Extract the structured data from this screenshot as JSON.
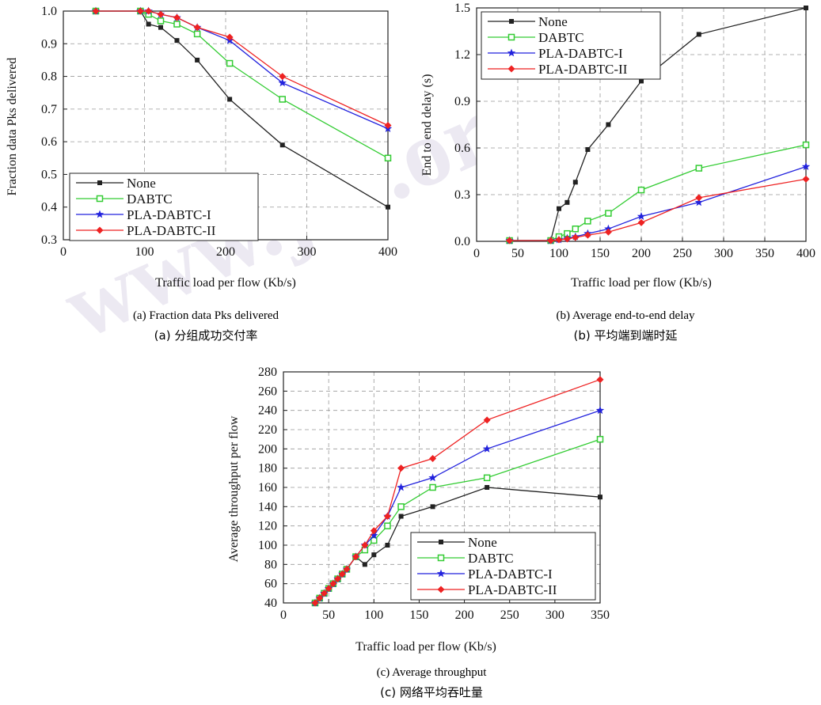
{
  "watermark": "www.jos.org.cn",
  "colors": {
    "None": "#222222",
    "DABTC": "#33cc33",
    "PLA-DABTC-I": "#2222dd",
    "PLA-DABTC-II": "#ee2222"
  },
  "charts": {
    "a": {
      "caption_en": "(a) Fraction data Pks delivered",
      "caption_cn": "(a)  分组成功交付率",
      "xlabel": "Traffic load per flow (Kb/s)",
      "ylabel": "Fraction data Pks delivered"
    },
    "b": {
      "caption_en": "(b) Average end-to-end delay",
      "caption_cn": "(b)  平均端到端时延",
      "xlabel": "Traffic load per flow (Kb/s)",
      "ylabel": "End to end delay (s)"
    },
    "c": {
      "caption_en": "(c) Average throughput",
      "caption_cn": "(c)  网络平均吞吐量",
      "xlabel": "Traffic load per flow (Kb/s)",
      "ylabel": "Average throughput per flow"
    }
  },
  "chart_data": [
    {
      "id": "a",
      "type": "line",
      "xlabel": "Traffic load per flow (Kb/s)",
      "ylabel": "Fraction data Pks delivered",
      "xlim": [
        0,
        400
      ],
      "ylim": [
        0.3,
        1.0
      ],
      "xticks": [
        0,
        100,
        200,
        300,
        400
      ],
      "yticks": [
        0.3,
        0.4,
        0.5,
        0.6,
        0.7,
        0.8,
        0.9,
        1.0
      ],
      "ytick_labels": [
        "0.3",
        "0.4",
        "0.5",
        "0.6",
        "0.7",
        "0.8",
        "0.9",
        "1.0"
      ],
      "grid": true,
      "legend": "bottom-left",
      "series": [
        {
          "name": "None",
          "marker": "square-filled",
          "x": [
            40,
            95,
            105,
            120,
            140,
            165,
            205,
            270,
            400
          ],
          "y": [
            1.0,
            1.0,
            0.96,
            0.95,
            0.91,
            0.85,
            0.73,
            0.59,
            0.4
          ]
        },
        {
          "name": "DABTC",
          "marker": "square-open",
          "x": [
            40,
            95,
            105,
            120,
            140,
            165,
            205,
            270,
            400
          ],
          "y": [
            1.0,
            1.0,
            0.99,
            0.97,
            0.96,
            0.93,
            0.84,
            0.73,
            0.55
          ]
        },
        {
          "name": "PLA-DABTC-I",
          "marker": "star",
          "x": [
            40,
            95,
            105,
            120,
            140,
            165,
            205,
            270,
            400
          ],
          "y": [
            1.0,
            1.0,
            1.0,
            0.99,
            0.98,
            0.95,
            0.91,
            0.78,
            0.64
          ]
        },
        {
          "name": "PLA-DABTC-II",
          "marker": "diamond",
          "x": [
            40,
            95,
            105,
            120,
            140,
            165,
            205,
            270,
            400
          ],
          "y": [
            1.0,
            1.0,
            1.0,
            0.99,
            0.98,
            0.95,
            0.92,
            0.8,
            0.65
          ]
        }
      ]
    },
    {
      "id": "b",
      "type": "line",
      "xlabel": "Traffic load per flow (Kb/s)",
      "ylabel": "End to end delay (s)",
      "xlim": [
        0,
        400
      ],
      "ylim": [
        0,
        1.5
      ],
      "xticks": [
        0,
        50,
        100,
        150,
        200,
        250,
        300,
        350,
        400
      ],
      "yticks": [
        0,
        0.3,
        0.6,
        0.9,
        1.2,
        1.5
      ],
      "ytick_labels": [
        "0.0",
        "0.3",
        "0.6",
        "0.9",
        "1.2",
        "1.5"
      ],
      "grid": true,
      "legend": "top-left",
      "series": [
        {
          "name": "None",
          "marker": "square-filled",
          "x": [
            40,
            90,
            100,
            110,
            120,
            135,
            160,
            200,
            270,
            400
          ],
          "y": [
            0.005,
            0.005,
            0.21,
            0.25,
            0.38,
            0.59,
            0.75,
            1.03,
            1.33,
            1.5
          ]
        },
        {
          "name": "DABTC",
          "marker": "square-open",
          "x": [
            40,
            90,
            100,
            110,
            120,
            135,
            160,
            200,
            270,
            400
          ],
          "y": [
            0.005,
            0.005,
            0.03,
            0.05,
            0.08,
            0.13,
            0.18,
            0.33,
            0.47,
            0.62
          ]
        },
        {
          "name": "PLA-DABTC-I",
          "marker": "star",
          "x": [
            40,
            90,
            100,
            110,
            120,
            135,
            160,
            200,
            270,
            400
          ],
          "y": [
            0.005,
            0.005,
            0.01,
            0.02,
            0.03,
            0.05,
            0.08,
            0.16,
            0.25,
            0.48
          ]
        },
        {
          "name": "PLA-DABTC-II",
          "marker": "diamond",
          "x": [
            40,
            90,
            100,
            110,
            120,
            135,
            160,
            200,
            270,
            400
          ],
          "y": [
            0.005,
            0.005,
            0.01,
            0.015,
            0.025,
            0.04,
            0.06,
            0.12,
            0.28,
            0.4
          ]
        }
      ]
    },
    {
      "id": "c",
      "type": "line",
      "xlabel": "Traffic load per flow (Kb/s)",
      "ylabel": "Average throughput per flow",
      "xlim": [
        0,
        350
      ],
      "ylim": [
        40,
        280
      ],
      "xticks": [
        0,
        50,
        100,
        150,
        200,
        250,
        300,
        350
      ],
      "yticks": [
        40,
        60,
        80,
        100,
        120,
        140,
        160,
        180,
        200,
        220,
        240,
        260,
        280
      ],
      "ytick_labels": [
        "40",
        "60",
        "80",
        "100",
        "120",
        "140",
        "160",
        "180",
        "200",
        "220",
        "240",
        "260",
        "280"
      ],
      "grid": true,
      "legend": "bottom-right",
      "series": [
        {
          "name": "None",
          "marker": "square-filled",
          "x": [
            35,
            40,
            45,
            50,
            55,
            60,
            65,
            70,
            80,
            90,
            100,
            115,
            130,
            165,
            225,
            350
          ],
          "y": [
            40,
            45,
            50,
            55,
            60,
            65,
            70,
            75,
            88,
            80,
            90,
            100,
            130,
            140,
            160,
            150
          ]
        },
        {
          "name": "DABTC",
          "marker": "square-open",
          "x": [
            35,
            40,
            45,
            50,
            55,
            60,
            65,
            70,
            80,
            90,
            100,
            115,
            130,
            165,
            225,
            350
          ],
          "y": [
            40,
            45,
            50,
            55,
            60,
            65,
            70,
            75,
            88,
            95,
            105,
            120,
            140,
            160,
            170,
            210
          ]
        },
        {
          "name": "PLA-DABTC-I",
          "marker": "star",
          "x": [
            35,
            40,
            45,
            50,
            55,
            60,
            65,
            70,
            80,
            90,
            100,
            115,
            130,
            165,
            225,
            350
          ],
          "y": [
            40,
            45,
            50,
            55,
            60,
            65,
            70,
            75,
            88,
            100,
            110,
            130,
            160,
            170,
            200,
            240
          ]
        },
        {
          "name": "PLA-DABTC-II",
          "marker": "diamond",
          "x": [
            35,
            40,
            45,
            50,
            55,
            60,
            65,
            70,
            80,
            90,
            100,
            115,
            130,
            165,
            225,
            350
          ],
          "y": [
            40,
            45,
            50,
            55,
            60,
            65,
            70,
            75,
            88,
            100,
            115,
            130,
            180,
            190,
            230,
            272
          ]
        }
      ]
    }
  ]
}
